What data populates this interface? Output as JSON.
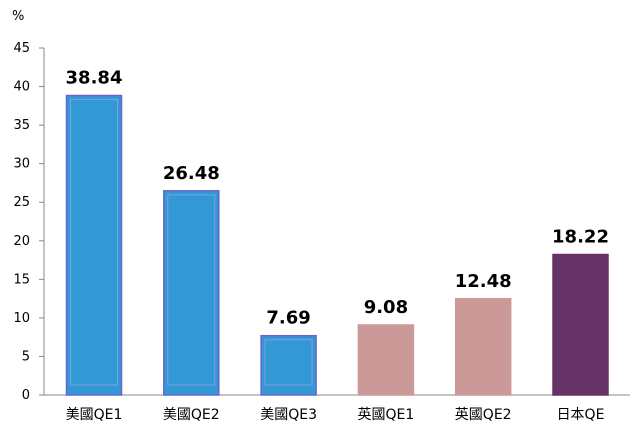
{
  "chart_data": {
    "type": "bar",
    "ylabel": "%",
    "ylim": [
      0,
      45
    ],
    "yticks": [
      0,
      5,
      10,
      15,
      20,
      25,
      30,
      35,
      40,
      45
    ],
    "categories": [
      "美國QE1",
      "美國QE2",
      "美國QE3",
      "英國QE1",
      "英國QE2",
      "日本QE"
    ],
    "values": [
      38.84,
      26.48,
      7.69,
      9.08,
      12.48,
      18.22
    ],
    "data_labels": [
      "38.84",
      "26.48",
      "7.69",
      "9.08",
      "12.48",
      "18.22"
    ],
    "bar_colors": [
      "#3399d6",
      "#3399d6",
      "#3399d6",
      "#cc9999",
      "#cc9999",
      "#663366"
    ],
    "bar_border_colors": [
      "#6666cc",
      "#6666cc",
      "#6666cc",
      "#cc9999",
      "#cc9999",
      "#663366"
    ],
    "grid": false,
    "legend": false
  }
}
